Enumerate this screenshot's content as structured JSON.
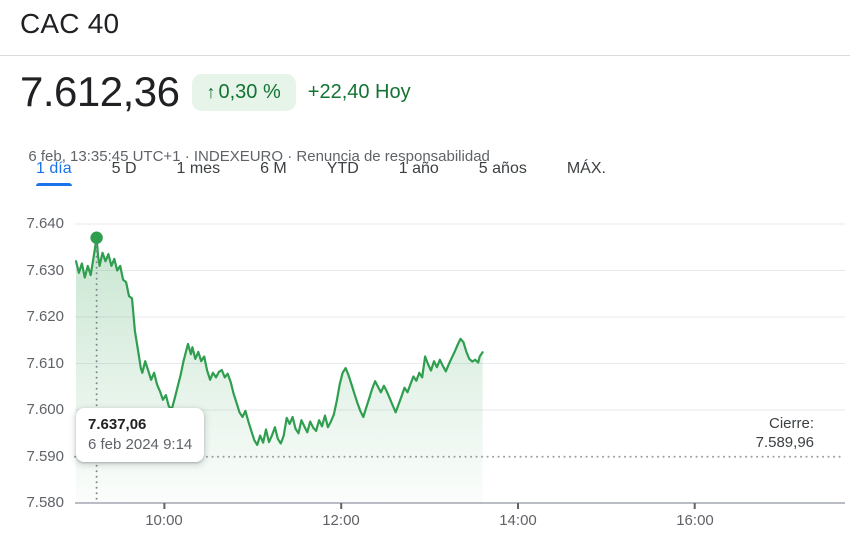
{
  "page": {
    "title": "CAC 40"
  },
  "quote": {
    "price": "7.612,36",
    "change_arrow": "↑",
    "change_percent": "0,30 %",
    "change_absolute": "+22,40 Hoy",
    "timestamp": "6 feb, 13:35:45 UTC+1",
    "separator": " · ",
    "exchange": "INDEXEURO",
    "disclaimer": "Renuncia de responsabilidad",
    "colors": {
      "positive_text": "#137333",
      "positive_badge_bg": "#e6f4ea",
      "active_tab_blue": "#1a73e8"
    }
  },
  "tabs": [
    {
      "label": "1 día",
      "active": true
    },
    {
      "label": "5 D",
      "active": false
    },
    {
      "label": "1 mes",
      "active": false
    },
    {
      "label": "6 M",
      "active": false
    },
    {
      "label": "YTD",
      "active": false
    },
    {
      "label": "1 año",
      "active": false
    },
    {
      "label": "5 años",
      "active": false
    },
    {
      "label": "MÁX.",
      "active": false
    }
  ],
  "tooltip": {
    "price": "7.637,06",
    "datetime": "6 feb 2024 9:14"
  },
  "close_label": {
    "title": "Cierre:",
    "value": "7.589,96"
  },
  "chart_data": {
    "type": "line",
    "title": "CAC 40 intraday price",
    "line_color": "#2f9e4f",
    "previous_close": 7589.96,
    "marker": {
      "minute": 14,
      "value": 7637.06,
      "label": "7.637,06",
      "time": "6 feb 2024 9:14"
    },
    "x_axis": {
      "start_time": "9:00",
      "total_minutes": 522,
      "tick_labels": [
        "10:00",
        "12:00",
        "14:00",
        "16:00"
      ],
      "tick_minutes": [
        60,
        180,
        300,
        420
      ]
    },
    "y_axis": {
      "min": 7580,
      "max": 7640,
      "tick_labels": [
        "7.640",
        "7.630",
        "7.620",
        "7.610",
        "7.600",
        "7.590",
        "7.580"
      ],
      "tick_values": [
        7640,
        7630,
        7620,
        7610,
        7600,
        7590,
        7580
      ],
      "grid_values": [
        7640,
        7630,
        7620,
        7610,
        7600
      ]
    },
    "series": [
      [
        0,
        7632
      ],
      [
        2,
        7629.5
      ],
      [
        4,
        7631.5
      ],
      [
        6,
        7628.5
      ],
      [
        8,
        7631
      ],
      [
        10,
        7629
      ],
      [
        12,
        7633
      ],
      [
        14,
        7637.06
      ],
      [
        15,
        7633
      ],
      [
        16,
        7631
      ],
      [
        18,
        7633.8
      ],
      [
        20,
        7632
      ],
      [
        22,
        7633.5
      ],
      [
        24,
        7631
      ],
      [
        26,
        7632.5
      ],
      [
        28,
        7630
      ],
      [
        30,
        7631
      ],
      [
        32,
        7628
      ],
      [
        34,
        7627.5
      ],
      [
        36,
        7624.5
      ],
      [
        38,
        7624
      ],
      [
        40,
        7617
      ],
      [
        42,
        7613
      ],
      [
        44,
        7609
      ],
      [
        45,
        7608
      ],
      [
        47,
        7610.5
      ],
      [
        49,
        7608.5
      ],
      [
        51,
        7606.5
      ],
      [
        53,
        7608
      ],
      [
        55,
        7605.5
      ],
      [
        57,
        7604
      ],
      [
        59,
        7602.2
      ],
      [
        61,
        7603.2
      ],
      [
        63,
        7600.8
      ],
      [
        65,
        7600.2
      ],
      [
        67,
        7602.5
      ],
      [
        69,
        7605
      ],
      [
        71,
        7607.5
      ],
      [
        73,
        7610.5
      ],
      [
        75,
        7613
      ],
      [
        76,
        7614.2
      ],
      [
        78,
        7612
      ],
      [
        79,
        7613.5
      ],
      [
        81,
        7611
      ],
      [
        83,
        7612.5
      ],
      [
        85,
        7610.5
      ],
      [
        87,
        7611.5
      ],
      [
        89,
        7608.5
      ],
      [
        91,
        7606.5
      ],
      [
        93,
        7608
      ],
      [
        95,
        7607
      ],
      [
        97,
        7608.2
      ],
      [
        99,
        7608.6
      ],
      [
        101,
        7607
      ],
      [
        103,
        7607.8
      ],
      [
        105,
        7606
      ],
      [
        107,
        7603.5
      ],
      [
        109,
        7601.5
      ],
      [
        111,
        7599.5
      ],
      [
        113,
        7598.5
      ],
      [
        115,
        7599.8
      ],
      [
        117,
        7597.5
      ],
      [
        119,
        7595.5
      ],
      [
        121,
        7593.5
      ],
      [
        123,
        7592.5
      ],
      [
        125,
        7594.5
      ],
      [
        127,
        7593
      ],
      [
        129,
        7595.8
      ],
      [
        131,
        7593.1
      ],
      [
        133,
        7594.5
      ],
      [
        135,
        7596.3
      ],
      [
        137,
        7593.8
      ],
      [
        139,
        7592.8
      ],
      [
        141,
        7594.5
      ],
      [
        143,
        7598.3
      ],
      [
        145,
        7597
      ],
      [
        147,
        7598.5
      ],
      [
        149,
        7596
      ],
      [
        151,
        7595
      ],
      [
        153,
        7597.8
      ],
      [
        155,
        7596.5
      ],
      [
        157,
        7595.2
      ],
      [
        159,
        7597.5
      ],
      [
        161,
        7596.2
      ],
      [
        163,
        7595.5
      ],
      [
        165,
        7597.8
      ],
      [
        167,
        7596.5
      ],
      [
        169,
        7598.8
      ],
      [
        171,
        7596.3
      ],
      [
        173,
        7597.5
      ],
      [
        175,
        7599
      ],
      [
        177,
        7602
      ],
      [
        179,
        7605.5
      ],
      [
        181,
        7608
      ],
      [
        183,
        7609
      ],
      [
        185,
        7607.5
      ],
      [
        187,
        7605.5
      ],
      [
        189,
        7603.5
      ],
      [
        191,
        7601.5
      ],
      [
        193,
        7599.8
      ],
      [
        195,
        7598.5
      ],
      [
        197,
        7600.5
      ],
      [
        199,
        7602.5
      ],
      [
        201,
        7604.5
      ],
      [
        203,
        7606.2
      ],
      [
        205,
        7605
      ],
      [
        207,
        7603.8
      ],
      [
        209,
        7605.2
      ],
      [
        211,
        7604
      ],
      [
        213,
        7602.5
      ],
      [
        215,
        7601
      ],
      [
        217,
        7599.5
      ],
      [
        219,
        7601.2
      ],
      [
        221,
        7603
      ],
      [
        223,
        7604.8
      ],
      [
        225,
        7603.8
      ],
      [
        227,
        7605.5
      ],
      [
        229,
        7607.2
      ],
      [
        231,
        7606.3
      ],
      [
        233,
        7608
      ],
      [
        235,
        7607
      ],
      [
        237,
        7611.5
      ],
      [
        239,
        7609.8
      ],
      [
        241,
        7608.5
      ],
      [
        243,
        7610.5
      ],
      [
        245,
        7609.2
      ],
      [
        247,
        7610.8
      ],
      [
        249,
        7609.5
      ],
      [
        251,
        7608.3
      ],
      [
        253,
        7609.8
      ],
      [
        255,
        7611.2
      ],
      [
        257,
        7612.5
      ],
      [
        259,
        7614
      ],
      [
        261,
        7615.3
      ],
      [
        263,
        7614.6
      ],
      [
        265,
        7612.5
      ],
      [
        267,
        7611
      ],
      [
        269,
        7610.4
      ],
      [
        271,
        7610.8
      ],
      [
        273,
        7610.2
      ],
      [
        274,
        7611.5
      ],
      [
        276,
        7612.4
      ]
    ]
  }
}
